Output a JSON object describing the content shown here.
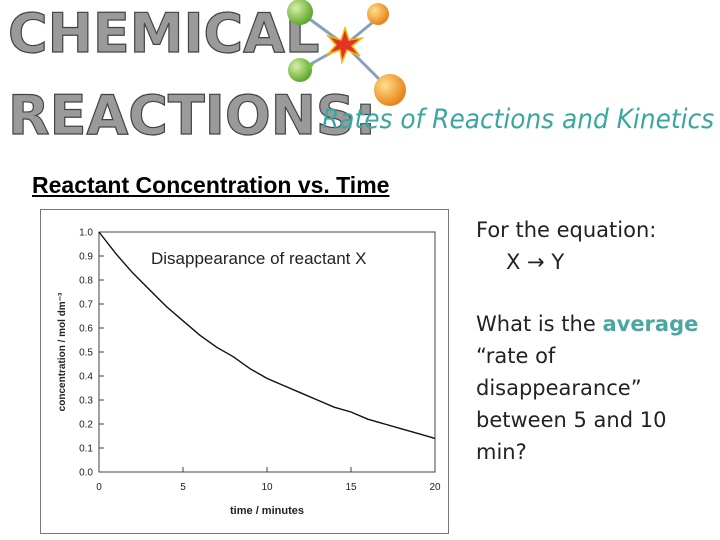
{
  "banner": {
    "title_line1": "CHEMICAL",
    "title_line2": "REACTIONS:",
    "subtitle": "Rates of Reactions and Kinetics",
    "molecule_icon": "molecule-icon",
    "colors": {
      "title_fill": "#9a9a9a",
      "subtitle": "#3aa6a0",
      "atom_green": "#7ac142",
      "atom_orange": "#f39a1e",
      "atom_red": "#e0342a"
    }
  },
  "slide": {
    "heading": "Reactant Concentration vs. Time"
  },
  "question": {
    "intro": "For the equation:",
    "equation": "X → Y",
    "prefix": "What is the",
    "keyword": "average",
    "rest": " “rate of disappearance” between 5 and 10 min?"
  },
  "chart_data": {
    "type": "line",
    "annotation": "Disappearance of reactant X",
    "xlabel": "time / minutes",
    "ylabel": "concentration / mol dm⁻³",
    "xlim": [
      0,
      20
    ],
    "ylim": [
      0,
      1.0
    ],
    "x_ticks": [
      "0",
      "5",
      "10",
      "15",
      "20"
    ],
    "y_ticks": [
      "0.0",
      "0.1",
      "0.2",
      "0.3",
      "0.4",
      "0.5",
      "0.6",
      "0.7",
      "0.8",
      "0.9",
      "1.0"
    ],
    "grid": false,
    "series": [
      {
        "x": [
          0,
          1,
          2,
          3,
          4,
          5,
          6,
          7,
          8,
          9,
          10,
          11,
          12,
          13,
          14,
          15,
          16,
          17,
          18,
          19,
          20
        ],
        "values": [
          1.0,
          0.91,
          0.83,
          0.76,
          0.69,
          0.63,
          0.57,
          0.52,
          0.48,
          0.43,
          0.39,
          0.36,
          0.33,
          0.3,
          0.27,
          0.25,
          0.22,
          0.2,
          0.18,
          0.16,
          0.14
        ]
      }
    ]
  }
}
